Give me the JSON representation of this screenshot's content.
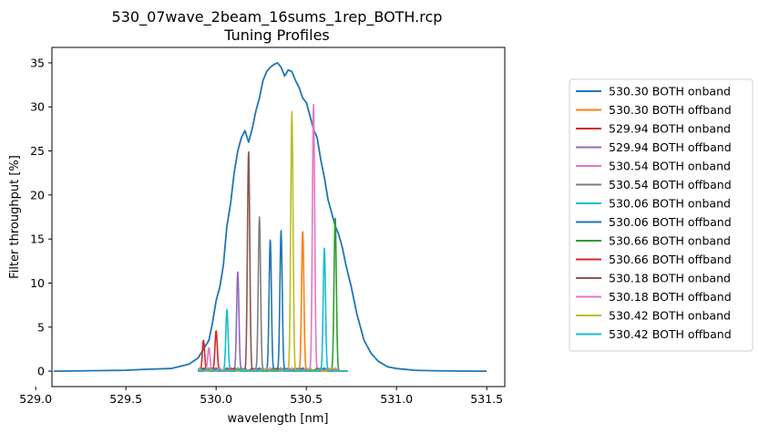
{
  "chart_data": {
    "type": "line",
    "title": "530_07wave_2beam_16sums_1rep_BOTH.rcp",
    "subtitle": "Tuning Profiles",
    "xlabel": "wavelength [nm]",
    "ylabel": "Filter throughput [%]",
    "xlim": [
      529.09,
      531.6
    ],
    "ylim": [
      -1.75,
      36.75
    ],
    "xticks": [
      529.0,
      529.5,
      530.0,
      530.5,
      531.0,
      531.5
    ],
    "xtick_labels": [
      "529.0",
      "529.5",
      "530.0",
      "530.5",
      "531.0",
      "531.5"
    ],
    "yticks": [
      0,
      5,
      10,
      15,
      20,
      25,
      30,
      35
    ],
    "ytick_labels": [
      "0",
      "5",
      "10",
      "15",
      "20",
      "25",
      "30",
      "35"
    ],
    "grid": false,
    "legend_position": "outside-right",
    "envelope": {
      "color": "#1f77b4",
      "x": [
        529.1,
        529.5,
        529.6,
        529.75,
        529.85,
        529.9,
        529.93,
        529.96,
        529.98,
        530.0,
        530.02,
        530.04,
        530.06,
        530.08,
        530.1,
        530.12,
        530.14,
        530.16,
        530.18,
        530.2,
        530.22,
        530.24,
        530.26,
        530.28,
        530.3,
        530.32,
        530.34,
        530.36,
        530.38,
        530.4,
        530.42,
        530.44,
        530.46,
        530.48,
        530.5,
        530.52,
        530.54,
        530.56,
        530.58,
        530.6,
        530.62,
        530.64,
        530.66,
        530.68,
        530.7,
        530.72,
        530.75,
        530.78,
        530.82,
        530.86,
        530.9,
        530.95,
        531.0,
        531.1,
        531.2,
        531.3,
        531.5
      ],
      "y": [
        0,
        0.1,
        0.2,
        0.3,
        0.8,
        1.5,
        2.5,
        3.5,
        5.5,
        8.0,
        9.5,
        12.0,
        16.5,
        19.0,
        22.5,
        25.0,
        26.5,
        27.3,
        26.0,
        27.5,
        29.5,
        31.0,
        33.0,
        34.0,
        34.5,
        34.8,
        35.0,
        34.5,
        33.5,
        34.2,
        34.0,
        33.0,
        32.2,
        31.0,
        30.5,
        29.0,
        27.5,
        26.5,
        24.0,
        22.0,
        19.5,
        18.0,
        16.5,
        15.5,
        14.0,
        12.0,
        9.5,
        6.5,
        3.5,
        2.0,
        1.1,
        0.5,
        0.3,
        0.1,
        0.05,
        0.02,
        0.0
      ]
    },
    "series": [
      {
        "name": "530.30 BOTH onband",
        "color": "#1f77b4",
        "peak_x": 530.3,
        "peak_y": 15.0
      },
      {
        "name": "530.30 BOTH offband",
        "color": "#ff7f0e",
        "peak_x": 530.48,
        "peak_y": 16.0
      },
      {
        "name": "529.94 BOTH onband",
        "color": "#d62728",
        "peak_x": 529.93,
        "peak_y": 3.5
      },
      {
        "name": "529.94 BOTH offband",
        "color": "#9467bd",
        "peak_x": 530.12,
        "peak_y": 11.3
      },
      {
        "name": "530.54 BOTH onband",
        "color": "#e377c2",
        "peak_x": 530.54,
        "peak_y": 30.3
      },
      {
        "name": "530.54 BOTH offband",
        "color": "#7f7f7f",
        "peak_x": 530.24,
        "peak_y": 17.5
      },
      {
        "name": "530.06 BOTH onband",
        "color": "#17becf",
        "peak_x": 530.06,
        "peak_y": 7.0
      },
      {
        "name": "530.06 BOTH offband",
        "color": "#1f77b4",
        "peak_x": 530.36,
        "peak_y": 16.0
      },
      {
        "name": "530.66 BOTH onband",
        "color": "#2ca02c",
        "peak_x": 530.66,
        "peak_y": 17.5
      },
      {
        "name": "530.66 BOTH offband",
        "color": "#d62728",
        "peak_x": 530.0,
        "peak_y": 4.6
      },
      {
        "name": "530.18 BOTH onband",
        "color": "#8c564b",
        "peak_x": 530.18,
        "peak_y": 25.0
      },
      {
        "name": "530.18 BOTH offband",
        "color": "#e377c2",
        "peak_x": 529.96,
        "peak_y": 2.6
      },
      {
        "name": "530.42 BOTH onband",
        "color": "#bcbd22",
        "peak_x": 530.42,
        "peak_y": 29.5
      },
      {
        "name": "530.42 BOTH offband",
        "color": "#17becf",
        "peak_x": 530.6,
        "peak_y": 14.0
      }
    ],
    "filter_range": [
      529.9,
      530.73
    ]
  }
}
